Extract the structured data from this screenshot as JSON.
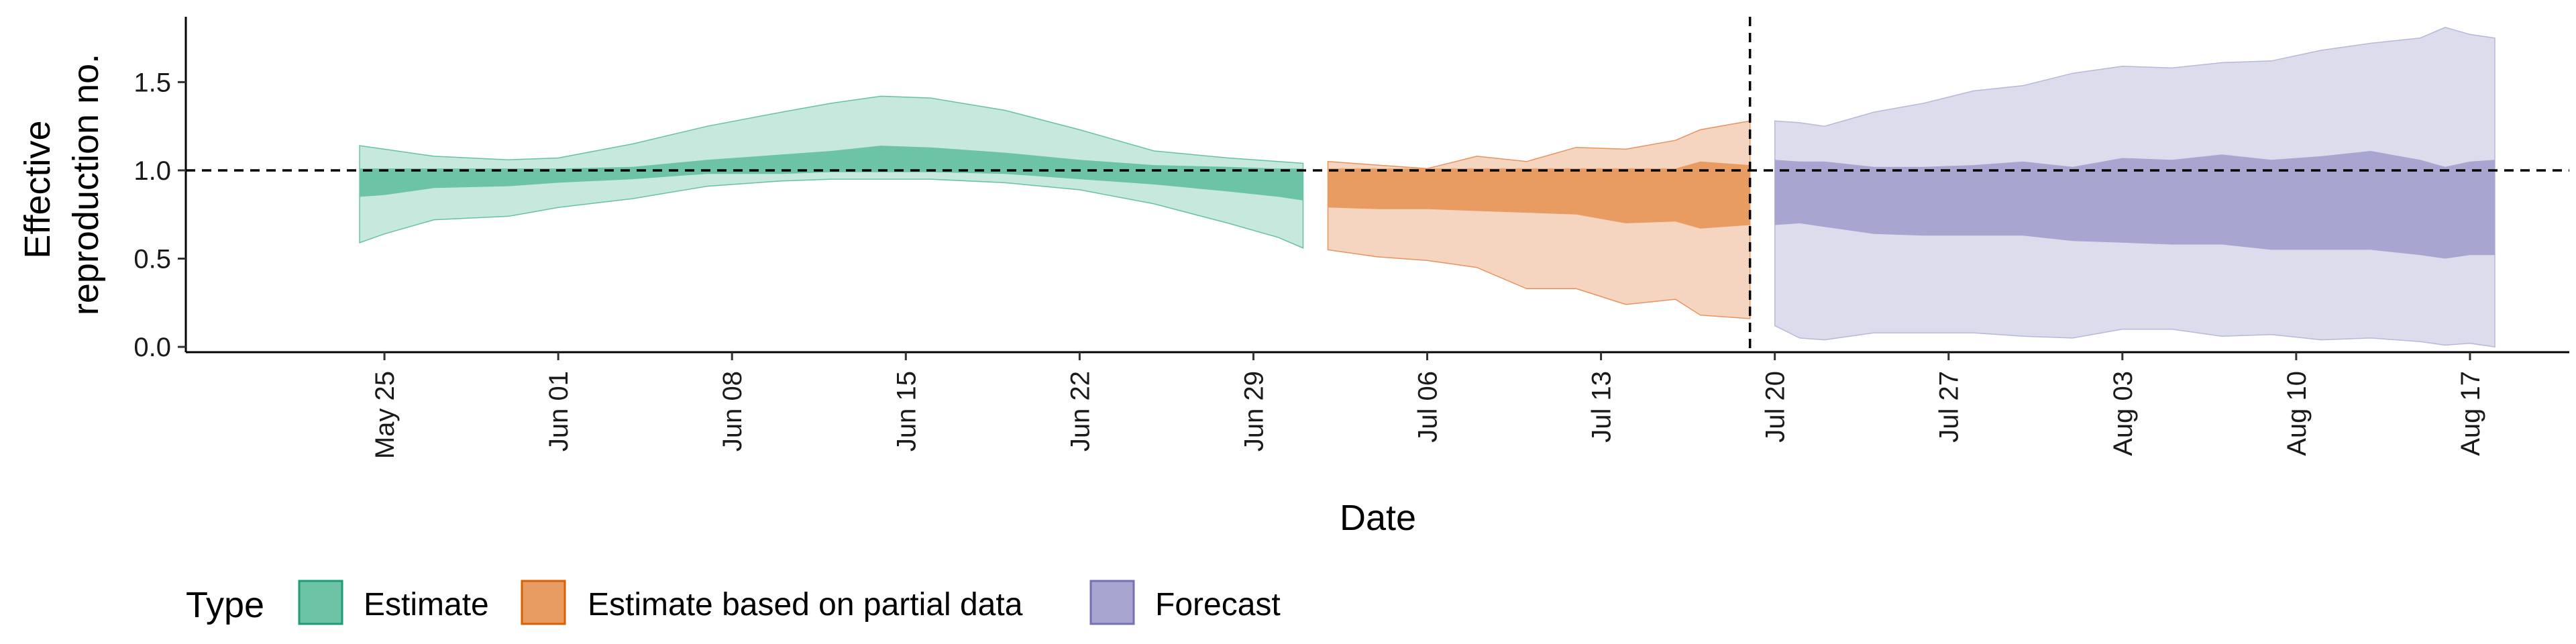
{
  "chart_data": {
    "type": "area",
    "xlabel": "Date",
    "ylabel_lines": [
      "Effective",
      "reproduction no."
    ],
    "ylim": [
      -0.03,
      1.87
    ],
    "xlim": [
      "2020-05-17",
      "2020-08-21"
    ],
    "yticks": [
      0.0,
      0.5,
      1.0,
      1.5
    ],
    "ytick_labels": [
      "0.0",
      "0.5",
      "1.0",
      "1.5"
    ],
    "xticks": [
      "2020-05-25",
      "2020-06-01",
      "2020-06-08",
      "2020-06-15",
      "2020-06-22",
      "2020-06-29",
      "2020-07-06",
      "2020-07-13",
      "2020-07-20",
      "2020-07-27",
      "2020-08-03",
      "2020-08-10",
      "2020-08-17"
    ],
    "xtick_labels": [
      "May 25",
      "Jun 01",
      "Jun 08",
      "Jun 15",
      "Jun 22",
      "Jun 29",
      "Jul 06",
      "Jul 13",
      "Jul 20",
      "Jul 27",
      "Aug 03",
      "Aug 10",
      "Aug 17"
    ],
    "hline": 1.0,
    "vline": "2020-07-19",
    "legend": {
      "title": "Type",
      "position": "bottom",
      "items": [
        {
          "label": "Estimate",
          "color": "#66c2a5"
        },
        {
          "label": "Estimate based on partial data",
          "color": "#fc8d62"
        },
        {
          "label": "Forecast",
          "color": "#8da0cb"
        }
      ]
    },
    "series": [
      {
        "name": "Estimate",
        "outer_color": "#c6e8dd",
        "outer_line": "#66c2a5",
        "inner_color": "#6cc3a6",
        "x": [
          "2020-05-24",
          "2020-05-25",
          "2020-05-27",
          "2020-05-30",
          "2020-06-01",
          "2020-06-04",
          "2020-06-07",
          "2020-06-10",
          "2020-06-12",
          "2020-06-14",
          "2020-06-16",
          "2020-06-19",
          "2020-06-22",
          "2020-06-25",
          "2020-06-28",
          "2020-06-30",
          "2020-07-01"
        ],
        "outer_lower": [
          0.59,
          0.64,
          0.72,
          0.74,
          0.79,
          0.84,
          0.91,
          0.94,
          0.95,
          0.95,
          0.95,
          0.93,
          0.89,
          0.81,
          0.7,
          0.62,
          0.56
        ],
        "outer_upper": [
          1.14,
          1.12,
          1.08,
          1.06,
          1.07,
          1.15,
          1.25,
          1.33,
          1.38,
          1.42,
          1.41,
          1.34,
          1.23,
          1.11,
          1.07,
          1.05,
          1.04
        ],
        "inner_lower": [
          0.85,
          0.86,
          0.9,
          0.91,
          0.93,
          0.95,
          0.98,
          0.98,
          0.99,
          0.99,
          0.99,
          0.98,
          0.95,
          0.92,
          0.88,
          0.85,
          0.83
        ],
        "inner_upper": [
          1.01,
          1.01,
          1.01,
          1.01,
          1.01,
          1.02,
          1.06,
          1.09,
          1.11,
          1.14,
          1.13,
          1.1,
          1.06,
          1.03,
          1.02,
          1.01,
          1.01
        ]
      },
      {
        "name": "Estimate based on partial data",
        "outer_color": "#f6d5c0",
        "outer_line": "#e8935d",
        "inner_color": "#e99c62",
        "x": [
          "2020-07-02",
          "2020-07-04",
          "2020-07-06",
          "2020-07-08",
          "2020-07-10",
          "2020-07-12",
          "2020-07-14",
          "2020-07-16",
          "2020-07-17",
          "2020-07-19"
        ],
        "outer_lower": [
          0.55,
          0.51,
          0.49,
          0.45,
          0.33,
          0.33,
          0.24,
          0.27,
          0.18,
          0.16
        ],
        "outer_upper": [
          1.05,
          1.03,
          1.01,
          1.08,
          1.05,
          1.13,
          1.12,
          1.17,
          1.23,
          1.28
        ],
        "inner_lower": [
          0.79,
          0.78,
          0.78,
          0.77,
          0.76,
          0.75,
          0.7,
          0.71,
          0.67,
          0.69
        ],
        "inner_upper": [
          1.01,
          1.01,
          1.01,
          1.01,
          1.01,
          1.01,
          1.01,
          1.01,
          1.05,
          1.03
        ]
      },
      {
        "name": "Forecast",
        "outer_color": "#dcdced",
        "outer_line": "#b6b8dc",
        "inner_color": "#a8a5d0",
        "x": [
          "2020-07-20",
          "2020-07-21",
          "2020-07-22",
          "2020-07-24",
          "2020-07-26",
          "2020-07-28",
          "2020-07-30",
          "2020-08-01",
          "2020-08-03",
          "2020-08-05",
          "2020-08-07",
          "2020-08-09",
          "2020-08-11",
          "2020-08-13",
          "2020-08-15",
          "2020-08-16",
          "2020-08-17",
          "2020-08-18"
        ],
        "outer_lower": [
          0.12,
          0.05,
          0.04,
          0.08,
          0.08,
          0.08,
          0.06,
          0.05,
          0.1,
          0.1,
          0.06,
          0.07,
          0.04,
          0.05,
          0.03,
          0.01,
          0.02,
          0.0
        ],
        "outer_upper": [
          1.28,
          1.27,
          1.25,
          1.33,
          1.38,
          1.45,
          1.48,
          1.55,
          1.59,
          1.58,
          1.61,
          1.62,
          1.68,
          1.72,
          1.75,
          1.81,
          1.77,
          1.75
        ],
        "inner_lower": [
          0.69,
          0.7,
          0.68,
          0.64,
          0.63,
          0.63,
          0.63,
          0.6,
          0.59,
          0.58,
          0.58,
          0.55,
          0.55,
          0.55,
          0.52,
          0.5,
          0.52,
          0.52
        ],
        "inner_upper": [
          1.06,
          1.05,
          1.05,
          1.02,
          1.02,
          1.03,
          1.05,
          1.02,
          1.07,
          1.06,
          1.09,
          1.06,
          1.08,
          1.11,
          1.06,
          1.02,
          1.05,
          1.06
        ]
      }
    ]
  }
}
